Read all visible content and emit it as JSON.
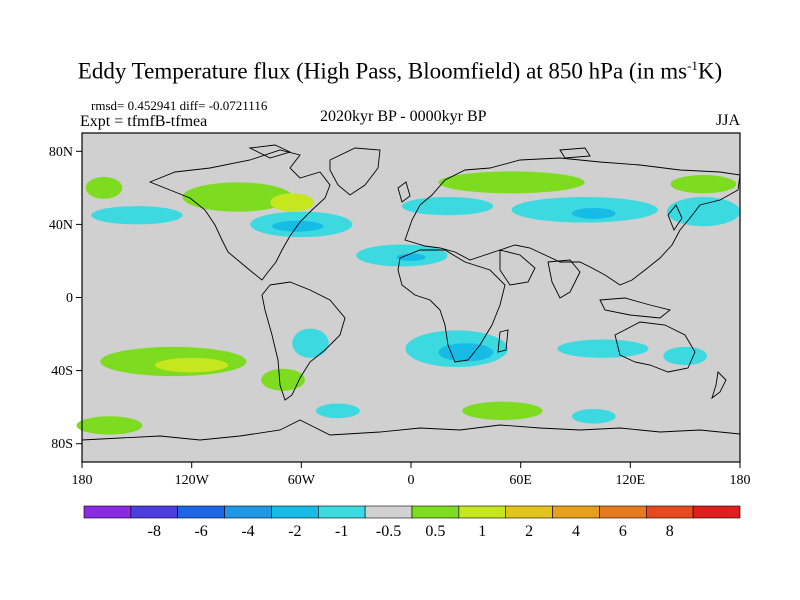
{
  "title": {
    "main": "Eddy Temperature flux (High Pass, Bloomfield) at 850 hPa (in ms",
    "sup": "-1",
    "end": "K)"
  },
  "stats": {
    "line": "rmsd= 0.452941 diff= -0.0721116",
    "expt": "Expt = tfmfB-tfmea"
  },
  "period": "2020kyr BP - 0000kyr BP",
  "season": "JJA",
  "colors": {
    "ocean": "#d0d0d0",
    "coast": "#000000"
  },
  "axes": {
    "x_ticks": [
      "180",
      "120W",
      "60W",
      "0",
      "60E",
      "120E",
      "180"
    ],
    "y_ticks": [
      "80N",
      "40N",
      "0",
      "40S",
      "80S"
    ]
  },
  "colorbar": {
    "colors": [
      "#8a2be2",
      "#4b3fe0",
      "#1e66e6",
      "#1f96e6",
      "#17bce6",
      "#3dd9e0",
      "#d0d0d0",
      "#7ddc1f",
      "#c6e61e",
      "#e6c21e",
      "#e6a01e",
      "#e67a1e",
      "#e64a1e",
      "#e01e1e"
    ],
    "labels": [
      "-8",
      "-6",
      "-4",
      "-2",
      "-1",
      "-0.5",
      "0.5",
      "1",
      "2",
      "4",
      "6",
      "8"
    ]
  },
  "map": {
    "x_range": [
      -180,
      180
    ],
    "y_range": [
      -90,
      90
    ],
    "anomaly_patches": [
      {
        "lon": -168,
        "lat": 60,
        "rx": 10,
        "ry": 6,
        "color": "#7ddc1f"
      },
      {
        "lon": -150,
        "lat": 45,
        "rx": 25,
        "ry": 5,
        "color": "#3dd9e0"
      },
      {
        "lon": -95,
        "lat": 55,
        "rx": 30,
        "ry": 8,
        "color": "#7ddc1f"
      },
      {
        "lon": -65,
        "lat": 52,
        "rx": 12,
        "ry": 5,
        "color": "#c6e61e"
      },
      {
        "lon": -60,
        "lat": 40,
        "rx": 28,
        "ry": 7,
        "color": "#3dd9e0"
      },
      {
        "lon": -62,
        "lat": 39,
        "rx": 14,
        "ry": 3,
        "color": "#17bce6"
      },
      {
        "lon": -5,
        "lat": 23,
        "rx": 25,
        "ry": 6,
        "color": "#3dd9e0"
      },
      {
        "lon": 0,
        "lat": 22,
        "rx": 8,
        "ry": 2,
        "color": "#17bce6"
      },
      {
        "lon": 55,
        "lat": 63,
        "rx": 40,
        "ry": 6,
        "color": "#7ddc1f"
      },
      {
        "lon": 20,
        "lat": 50,
        "rx": 25,
        "ry": 5,
        "color": "#3dd9e0"
      },
      {
        "lon": 95,
        "lat": 48,
        "rx": 40,
        "ry": 7,
        "color": "#3dd9e0"
      },
      {
        "lon": 100,
        "lat": 46,
        "rx": 12,
        "ry": 3,
        "color": "#17bce6"
      },
      {
        "lon": 160,
        "lat": 47,
        "rx": 20,
        "ry": 8,
        "color": "#3dd9e0"
      },
      {
        "lon": 160,
        "lat": 62,
        "rx": 18,
        "ry": 5,
        "color": "#7ddc1f"
      },
      {
        "lon": -130,
        "lat": -35,
        "rx": 40,
        "ry": 8,
        "color": "#7ddc1f"
      },
      {
        "lon": -120,
        "lat": -37,
        "rx": 20,
        "ry": 4,
        "color": "#c6e61e"
      },
      {
        "lon": -70,
        "lat": -45,
        "rx": 12,
        "ry": 6,
        "color": "#7ddc1f"
      },
      {
        "lon": -55,
        "lat": -25,
        "rx": 10,
        "ry": 8,
        "color": "#3dd9e0"
      },
      {
        "lon": 25,
        "lat": -28,
        "rx": 28,
        "ry": 10,
        "color": "#3dd9e0"
      },
      {
        "lon": 30,
        "lat": -30,
        "rx": 15,
        "ry": 5,
        "color": "#17bce6"
      },
      {
        "lon": 105,
        "lat": -28,
        "rx": 25,
        "ry": 5,
        "color": "#3dd9e0"
      },
      {
        "lon": 150,
        "lat": -32,
        "rx": 12,
        "ry": 5,
        "color": "#3dd9e0"
      },
      {
        "lon": -165,
        "lat": -70,
        "rx": 18,
        "ry": 5,
        "color": "#7ddc1f"
      },
      {
        "lon": -40,
        "lat": -62,
        "rx": 12,
        "ry": 4,
        "color": "#3dd9e0"
      },
      {
        "lon": 50,
        "lat": -62,
        "rx": 22,
        "ry": 5,
        "color": "#7ddc1f"
      },
      {
        "lon": 100,
        "lat": -65,
        "rx": 12,
        "ry": 4,
        "color": "#3dd9e0"
      }
    ]
  }
}
